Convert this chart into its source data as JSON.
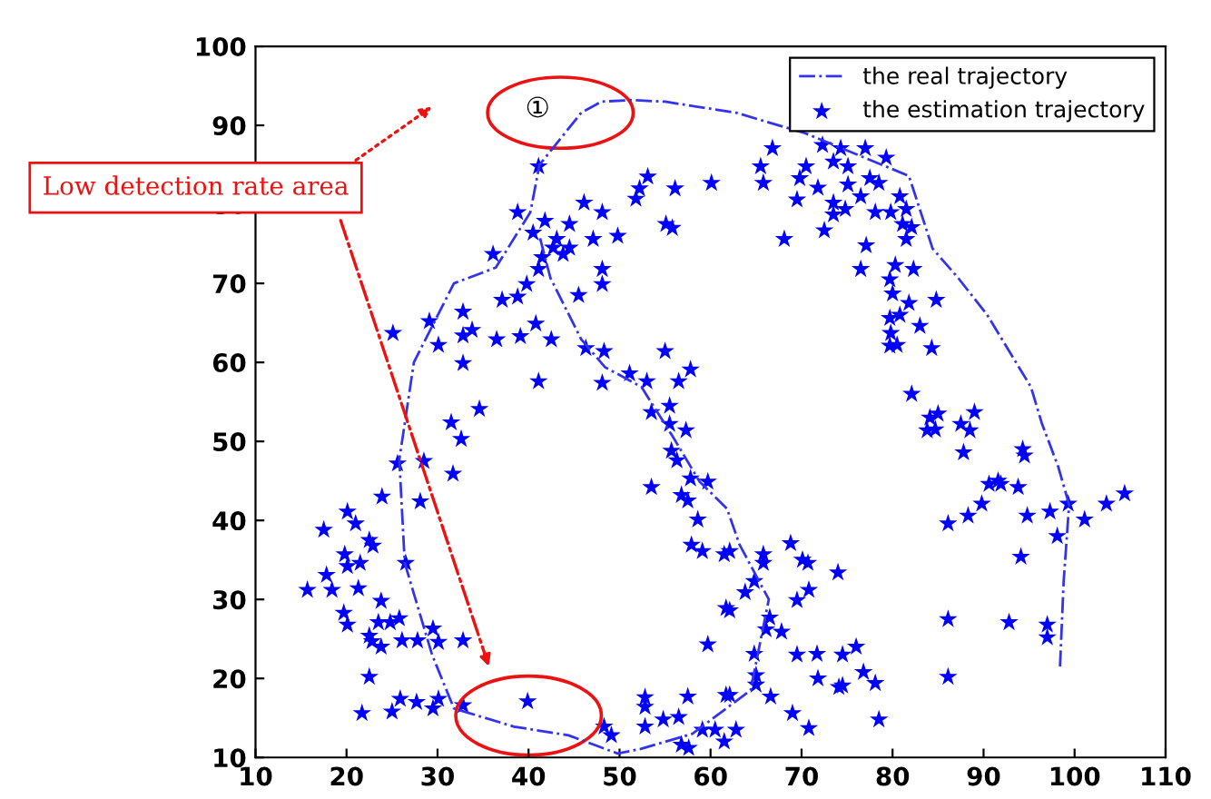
{
  "chart_data": {
    "type": "scatter",
    "xlim": [
      10,
      110
    ],
    "ylim": [
      10,
      100
    ],
    "xticks": [
      10,
      20,
      30,
      40,
      50,
      60,
      70,
      80,
      90,
      100,
      110
    ],
    "yticks": [
      10,
      20,
      30,
      40,
      50,
      60,
      70,
      80,
      90,
      100
    ],
    "grid": false,
    "legend": "top right",
    "annotations": [
      "Low detection rate area",
      "①"
    ],
    "series": [
      {
        "name": "the real trajectory",
        "type": "line",
        "color": "#3333ee",
        "line_style": "dashdot",
        "marker": "none",
        "x": [
          98.4,
          98.8,
          99.4,
          98.2,
          96.4,
          95.2,
          90.4,
          87.2,
          84.4,
          81.8,
          70.4,
          62.8,
          55,
          51.2,
          48,
          45.8,
          41.2,
          40.2,
          36.4,
          31.8,
          27.4,
          25.8,
          26.4,
          29.4,
          31.8,
          38.4,
          44.4,
          49.8,
          52.4,
          58,
          64.4,
          66.4,
          63.2,
          61.8,
          58.8,
          55.8,
          52.4,
          48.4,
          45.8,
          42.4,
          41.2
        ],
        "values": [
          21.5,
          32.3,
          42,
          46.8,
          52.3,
          56.9,
          66,
          70.7,
          74.4,
          83.6,
          89,
          91.6,
          93,
          93.2,
          93,
          91.6,
          85,
          79,
          72,
          70,
          60,
          47.7,
          34.6,
          23,
          16.2,
          13.9,
          12.8,
          10.5,
          11.1,
          13,
          18.5,
          30,
          36.9,
          41.5,
          44.9,
          50.7,
          56.9,
          59.4,
          62.9,
          70.7,
          76
        ]
      },
      {
        "name": "the estimation trajectory",
        "color": "#0000ff",
        "marker": "star",
        "x": [
          41.1,
          53.1,
          60.1,
          52.2,
          51.8,
          56.1,
          46.1,
          38.8,
          48.1,
          41.8,
          44.5,
          40.5,
          43.1,
          42.7,
          43.8,
          44.5,
          41.5,
          49.8,
          47.1,
          55.1,
          55.8,
          36.1,
          41.1,
          48.1,
          48.1,
          39.8,
          38.8,
          37.1,
          45.5,
          25.1,
          29.1,
          32.8,
          33.8,
          30.1,
          32.8,
          36.5,
          39.1,
          40.8,
          42.5,
          32.8,
          41.1,
          46.3,
          48.3,
          51.1,
          53,
          48.1,
          56.5,
          57.8,
          55,
          66.8,
          65.5,
          65.8,
          72.3,
          74.3,
          77,
          79.3,
          70.5,
          73.5,
          75.1,
          69.8,
          71.8,
          75.1,
          77.5,
          78.5,
          69.5,
          73.5,
          76.5,
          74.8,
          80.8,
          78.1,
          79.8,
          81.5,
          73.5,
          72.5,
          81.1,
          82.1,
          81.5,
          68.1,
          77.1,
          76.5,
          80.3,
          82.3,
          79.7,
          80,
          81.8,
          84.8,
          79.7,
          80.8,
          83,
          79.8,
          80.5,
          79.7,
          84.3,
          82.1,
          34.6,
          31.5,
          32.6,
          31.7,
          25.6,
          28.5,
          23.9,
          28.1,
          17.5,
          20.1,
          21,
          22.5,
          22.9,
          26.5,
          19.8,
          20.1,
          21.5,
          17.8,
          15.7,
          18.4,
          21.3,
          23.8,
          19.7,
          20.1,
          23.5,
          24.8,
          25.8,
          22.5,
          22.8,
          23.8,
          26.1,
          27.8,
          29.5,
          30.1,
          32.8,
          22.5,
          21.7,
          25,
          25.9,
          27.7,
          29.5,
          30.1,
          32.8,
          39.9,
          48.3,
          49.1,
          52.8,
          52.8,
          52.8,
          54.8,
          56.5,
          57.5,
          56.8,
          57.6,
          59.1,
          60.5,
          61.5,
          53.5,
          55.5,
          55.5,
          57.3,
          55.7,
          56.3,
          57.8,
          59.7,
          53.5,
          56.8,
          57.5,
          58.6,
          57.9,
          59.1,
          61.5,
          61.7,
          59.7,
          61.7,
          84.1,
          85,
          83.8,
          84.7,
          87.5,
          89,
          88.5,
          87.8,
          94.3,
          94.5,
          90.6,
          91.6,
          91.9,
          93.8,
          86.1,
          88.3,
          89.8,
          94.8,
          97.3,
          99.3,
          101.1,
          98.1,
          103.5,
          105.5,
          94.1,
          86.1,
          92.8,
          97,
          97,
          86.1,
          62.1,
          65.8,
          65.8,
          64.8,
          63.8,
          68.8,
          70.1,
          70.7,
          74,
          70.8,
          69.5,
          62.1,
          66.5,
          66.1,
          67.8,
          64.8,
          69.5,
          71.7,
          74.5,
          76,
          65,
          65,
          71.8,
          76.8,
          74.1,
          74.5,
          78.1,
          66.6,
          62.1,
          69,
          78.5,
          70.8,
          62.8
        ],
        "values": [
          84.8,
          83.5,
          82.7,
          82,
          80.7,
          82,
          80.2,
          79,
          79,
          77.9,
          77.5,
          76.4,
          75.6,
          74.5,
          73.7,
          74.5,
          73.3,
          76,
          75.6,
          77.5,
          77,
          73.7,
          71.8,
          71.8,
          69.9,
          69.9,
          68.3,
          67.9,
          68.5,
          63.7,
          65.2,
          66.4,
          64.1,
          62.2,
          63.4,
          62.9,
          63.3,
          64.9,
          62.9,
          59.9,
          57.6,
          61.8,
          61.4,
          58.6,
          57.6,
          57.4,
          57.6,
          59.1,
          61.4,
          87.1,
          84.8,
          82.7,
          87.5,
          87.1,
          87.1,
          85.9,
          84.8,
          85.4,
          84.8,
          83.3,
          82.1,
          82.5,
          83.3,
          82.7,
          80.6,
          80.2,
          81,
          79.4,
          81,
          79,
          79,
          79.4,
          78.7,
          76.7,
          77.5,
          77.1,
          75.6,
          75.6,
          74.8,
          71.8,
          72.3,
          71.8,
          70.5,
          68.7,
          67.5,
          67.9,
          65.6,
          66,
          64.6,
          63.7,
          62.2,
          62.1,
          61.8,
          56,
          54.1,
          52.4,
          50.3,
          45.9,
          47.2,
          47.5,
          43,
          42.4,
          38.8,
          41.1,
          39.6,
          37.5,
          36.8,
          34.6,
          35.7,
          34.2,
          34.6,
          33.1,
          31.2,
          31.2,
          31.4,
          29.8,
          28.3,
          26.8,
          27.1,
          27.1,
          27.6,
          25.4,
          24.7,
          24,
          24.8,
          24.8,
          26.3,
          24.6,
          24.8,
          20.2,
          15.6,
          15.8,
          17.4,
          17,
          16.2,
          17.4,
          16.6,
          17.1,
          13.9,
          12.8,
          17.6,
          16.4,
          13.9,
          14.8,
          15.1,
          17.7,
          11.6,
          11.2,
          13.5,
          13.5,
          12,
          53.7,
          54.5,
          52.2,
          51.4,
          48.8,
          47.6,
          45.3,
          44.9,
          44.2,
          43.2,
          42.5,
          40.1,
          36.9,
          36.1,
          35.7,
          28.9,
          24.3,
          17.9,
          53,
          53.5,
          51.4,
          51.5,
          52.2,
          53.7,
          51.4,
          48.6,
          49,
          48.2,
          44.6,
          45,
          44.6,
          44.2,
          39.6,
          40.6,
          42.1,
          40.6,
          41.1,
          42.1,
          40.1,
          38,
          42.1,
          43.4,
          35.4,
          27.5,
          27.1,
          26.8,
          25.2,
          20.2,
          36.1,
          35.7,
          34.6,
          32.3,
          30.9,
          37.1,
          35,
          34.6,
          33.4,
          31.2,
          29.9,
          28.6,
          27.7,
          26.2,
          25.9,
          23.1,
          23,
          23.1,
          23,
          24,
          20.4,
          19.2,
          20,
          20.8,
          18.9,
          19.1,
          19.4,
          17.7,
          17.9,
          15.6,
          14.8,
          13.7,
          13.5
        ]
      }
    ]
  }
}
